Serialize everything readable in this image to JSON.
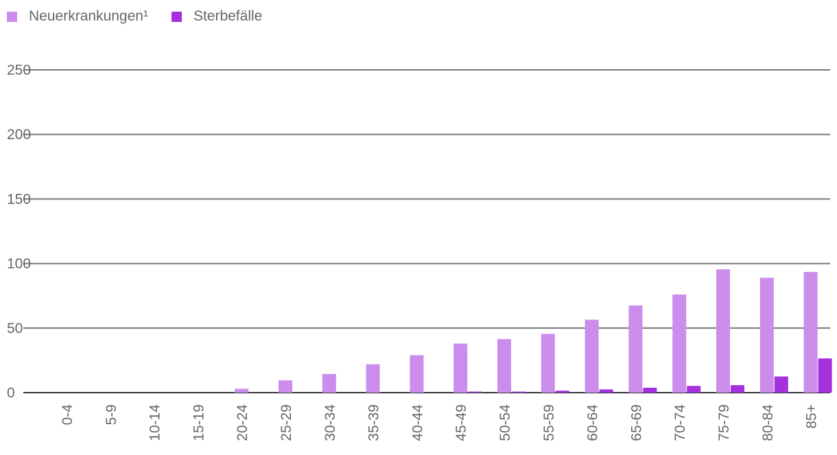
{
  "chart_data": {
    "type": "bar",
    "categories": [
      "0-4",
      "5-9",
      "10-14",
      "15-19",
      "20-24",
      "25-29",
      "30-34",
      "35-39",
      "40-44",
      "45-49",
      "50-54",
      "55-59",
      "60-64",
      "65-69",
      "70-74",
      "75-79",
      "80-84",
      "85+"
    ],
    "series": [
      {
        "name": "Neuerkrankungen¹",
        "color": "#cb8cec",
        "values": [
          0,
          0,
          0,
          0,
          3,
          9.5,
          14.5,
          22,
          29,
          38,
          41.5,
          45.5,
          56.5,
          67.5,
          76,
          95.5,
          89,
          93.5
        ]
      },
      {
        "name": "Sterbefälle",
        "color": "#a431dd",
        "values": [
          0,
          0,
          0,
          0,
          0,
          0,
          0,
          0,
          0,
          0.8,
          0.8,
          1.5,
          2.5,
          3.8,
          5.2,
          5.8,
          12.5,
          26.5
        ]
      }
    ],
    "ylim": [
      0,
      250
    ],
    "yticks": [
      0,
      50,
      100,
      150,
      200,
      250
    ],
    "grid": true,
    "legend_position": "top-left"
  }
}
